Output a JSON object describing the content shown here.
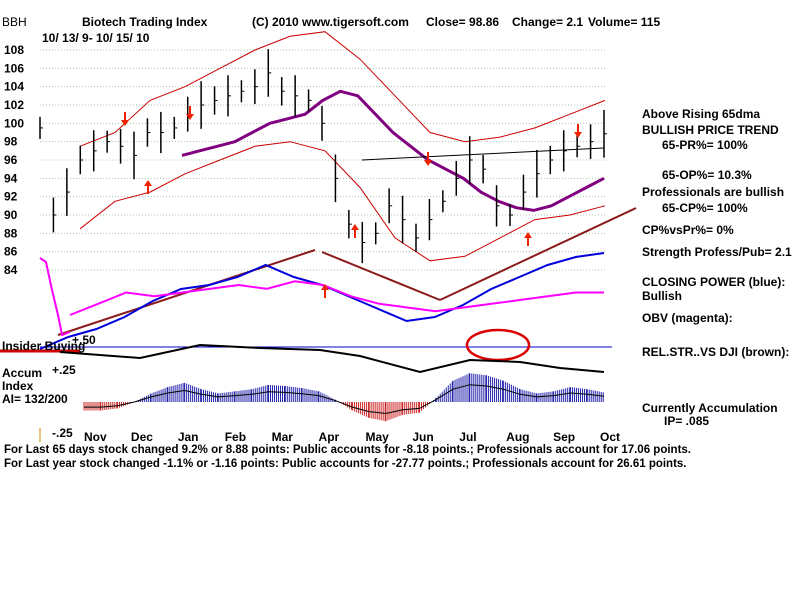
{
  "header": {
    "ticker": "BBH",
    "title": "Biotech Trading Index",
    "copyright": "(C) 2010 www.tigersoft.com",
    "close": "Close=  98.86",
    "change": "Change= 2.1",
    "volume": "Volume= 115",
    "date_range": "10/ 13/ 9-  10/ 15/ 10"
  },
  "chart_data": {
    "type": "line",
    "title": "Biotech Trading Index",
    "y_ticks": [
      "108",
      "106",
      "104",
      "102",
      "100",
      "98",
      "96",
      "94",
      "92",
      "90",
      "88",
      "86",
      "84"
    ],
    "ylim": [
      82,
      110
    ],
    "months": [
      "Nov",
      "Dec",
      "Jan",
      "Feb",
      "Mar",
      "Apr",
      "May",
      "Jun",
      "Jul",
      "Aug",
      "Sep",
      "Oct"
    ],
    "price": [
      99.5,
      90,
      92.5,
      96,
      97,
      98,
      97.5,
      96.5,
      99,
      99,
      99.5,
      101,
      102,
      102.5,
      103,
      103.5,
      104,
      105.5,
      103.5,
      103,
      102.5,
      100,
      94,
      89,
      87,
      88,
      91,
      89.5,
      87.5,
      89.5,
      91.5,
      94,
      96,
      95,
      91,
      90,
      92.5,
      94.5,
      96,
      97,
      97.5,
      98,
      98.86
    ],
    "ma65": [
      96.5,
      97,
      97.5,
      98,
      99,
      100,
      100.5,
      101,
      102.5,
      103.5,
      103,
      101,
      99,
      97.5,
      96,
      95,
      94,
      92.5,
      91.5,
      90.8,
      90.5,
      91,
      92,
      93,
      94
    ],
    "upper_band": [
      97.5,
      99,
      102.5,
      104,
      106,
      108,
      109.5,
      110,
      107,
      103,
      99,
      98,
      98.5,
      99.5,
      101,
      102.5
    ],
    "lower_band": [
      88.5,
      91.5,
      92.5,
      94.5,
      96,
      97.5,
      98,
      97,
      93,
      87.5,
      85,
      85.5,
      87.5,
      89.5,
      90,
      91
    ],
    "closing_power": [
      -0.3,
      -0.15,
      -0.05,
      0.1,
      0.3,
      0.45,
      0.5,
      0.6,
      0.75,
      0.6,
      0.5,
      0.35,
      0.2,
      0.05,
      0.1,
      0.25,
      0.45,
      0.6,
      0.75,
      0.85,
      0.9
    ],
    "obv": [
      0.2,
      0.35,
      0.5,
      0.45,
      0.5,
      0.55,
      0.6,
      0.55,
      0.65,
      0.6,
      0.45,
      0.35,
      0.3,
      0.25,
      0.3,
      0.35,
      0.4,
      0.45,
      0.5,
      0.5
    ],
    "accum_values": [
      -0.08,
      -0.08,
      -0.06,
      0,
      0.08,
      0.14,
      0.18,
      0.12,
      0.08,
      0.1,
      0.12,
      0.16,
      0.15,
      0.13,
      0.1,
      0.02,
      -0.08,
      -0.15,
      -0.18,
      -0.12,
      -0.1,
      0.04,
      0.2,
      0.27,
      0.25,
      0.2,
      0.12,
      0.08,
      0.1,
      0.14,
      0.12,
      0.09
    ],
    "accum_ylim": [
      -0.25,
      0.3
    ],
    "accum_ticks": [
      "+.50",
      "+.25",
      "-.25"
    ],
    "trendlines": "brown support/resistance lines",
    "legend": [
      "CLOSING POWER (blue)",
      "OBV (magenta)",
      "REL.STR..VS DJI (brown)"
    ]
  },
  "labels": {
    "insider_buying": "Insider Buying",
    "accum_line1": "Accum",
    "accum_line2": "Index",
    "ai": "AI= 132/200"
  },
  "right_panel": {
    "above_ma": "Above Rising 65dma",
    "trend": "BULLISH PRICE TREND",
    "pr": "65-PR%= 100%",
    "op": "65-OP%= 10.3%",
    "professionals": "Professionals are bullish",
    "cp": "65-CP%= 100%",
    "cpvspr": "CP%vsPr%=  0%",
    "strength": "Strength Profess/Pub= 2.1",
    "closing_power_label": "CLOSING POWER (blue):",
    "closing_power_value": "Bullish",
    "obv_label": "OBV (magenta):",
    "relstr_label": "REL.STR..VS DJI (brown):",
    "accum_label": "Currently Accumulation",
    "ip": "IP=  .085"
  },
  "footer": {
    "line1": "For Last 65 days stock changed  9.2% or  8.88 points:  Public accounts for -8.18 points.;  Professionals account for  17.06 points.",
    "line2": "For Last year stock changed -1.1% or -1.16 points:  Public accounts for -27.77 points.;  Professionals account for  26.61 points."
  },
  "colors": {
    "price": "#000000",
    "ma65": "#800080",
    "bands": "#cc0000",
    "closing_power": "#0000dd",
    "obv": "#ff00ff",
    "trendline": "#8b1a1a",
    "accum_pos": "#2222aa",
    "accum_neg": "#cc2222",
    "grid": "#a8c8a8",
    "arrow": "#ee2200"
  }
}
